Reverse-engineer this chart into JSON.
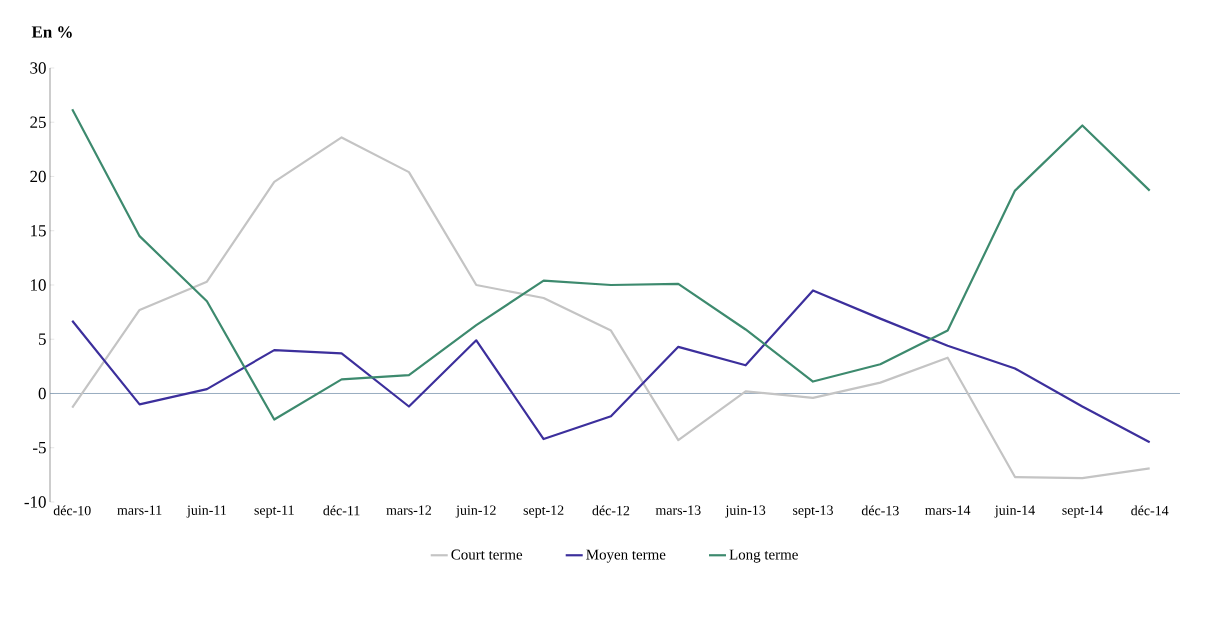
{
  "chart_data": {
    "type": "line",
    "ylabel": "En %",
    "categories": [
      "déc-10",
      "mars-11",
      "juin-11",
      "sept-11",
      "déc-11",
      "mars-12",
      "juin-12",
      "sept-12",
      "déc-12",
      "mars-13",
      "juin-13",
      "sept-13",
      "déc-13",
      "mars-14",
      "juin-14",
      "sept-14",
      "déc-14"
    ],
    "series": [
      {
        "name": "Court terme",
        "color": "#c4c4c4",
        "values": [
          -1.3,
          7.7,
          10.3,
          19.5,
          23.6,
          20.4,
          10,
          8.8,
          5.8,
          -4.3,
          0.2,
          -0.4,
          1,
          3.3,
          -7.7,
          -7.8,
          -6.9
        ]
      },
      {
        "name": "Moyen terme",
        "color": "#3c2f9c",
        "values": [
          6.7,
          -1,
          0.4,
          4,
          3.7,
          -1.2,
          4.9,
          -4.2,
          -2.1,
          4.3,
          2.6,
          9.5,
          6.9,
          4.4,
          2.3,
          -1.2,
          -4.5
        ]
      },
      {
        "name": "Long terme",
        "color": "#3d8a6e",
        "values": [
          26.2,
          14.5,
          8.5,
          -2.4,
          1.3,
          1.7,
          6.3,
          10.4,
          10,
          10.1,
          5.9,
          1.1,
          2.7,
          5.8,
          18.7,
          24.7,
          18.7
        ]
      }
    ],
    "ylim": [
      -10,
      30
    ],
    "yticks": [
      -10,
      -5,
      0,
      5,
      10,
      15,
      20,
      25,
      30
    ],
    "ref_lines": [
      {
        "axis": "y",
        "value": 0,
        "color": "#7f98b0"
      }
    ],
    "legend": "bottom",
    "grid": false,
    "marker": "none",
    "line_style": "solid"
  }
}
